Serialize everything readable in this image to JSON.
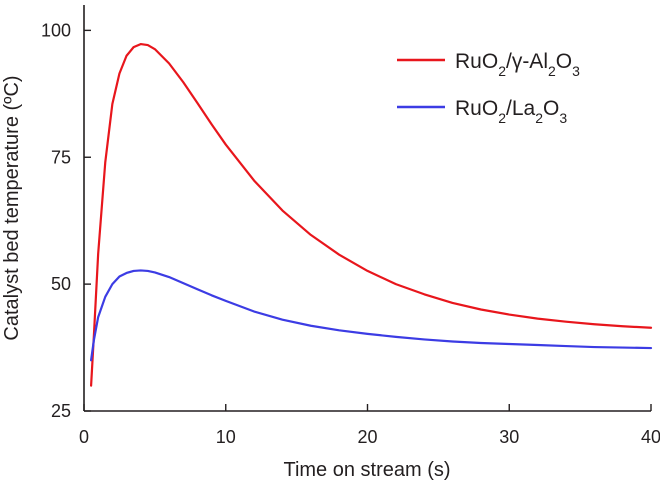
{
  "chart_data": {
    "type": "line",
    "xlabel": "Time on stream (s)",
    "ylabel": "Catalyst bed temperature (ºC)",
    "xlim": [
      0,
      40
    ],
    "ylim": [
      25,
      105
    ],
    "x_ticks": [
      0,
      10,
      20,
      30,
      40
    ],
    "y_ticks": [
      25,
      50,
      75,
      100
    ],
    "grid": false,
    "legend_position": "top-right",
    "series": [
      {
        "name": "RuO2/γ-Al2O3",
        "legend_parts": [
          {
            "text": "RuO"
          },
          {
            "text": "2",
            "sub": true
          },
          {
            "text": "/γ-Al"
          },
          {
            "text": "2",
            "sub": true
          },
          {
            "text": "O"
          },
          {
            "text": "3",
            "sub": true
          }
        ],
        "color": "#e8161c",
        "x": [
          0.5,
          0.7,
          1.0,
          1.5,
          2.0,
          2.5,
          3.0,
          3.5,
          4.0,
          4.5,
          5.0,
          6.0,
          7.0,
          8.0,
          9.0,
          10.0,
          12.0,
          14.0,
          16.0,
          18.0,
          20.0,
          22.0,
          24.0,
          26.0,
          28.0,
          30.0,
          32.0,
          34.0,
          36.0,
          38.0,
          40.0
        ],
        "y": [
          30.0,
          40.0,
          56.0,
          74.0,
          85.5,
          91.5,
          95.0,
          96.7,
          97.3,
          97.1,
          96.3,
          93.5,
          89.8,
          85.7,
          81.5,
          77.5,
          70.4,
          64.5,
          59.7,
          55.8,
          52.6,
          50.0,
          48.0,
          46.3,
          45.0,
          44.0,
          43.2,
          42.6,
          42.1,
          41.7,
          41.4
        ]
      },
      {
        "name": "RuO2/La2O3",
        "legend_parts": [
          {
            "text": "RuO"
          },
          {
            "text": "2",
            "sub": true
          },
          {
            "text": "/La"
          },
          {
            "text": "2",
            "sub": true
          },
          {
            "text": "O"
          },
          {
            "text": "3",
            "sub": true
          }
        ],
        "color": "#3c3ce4",
        "x": [
          0.5,
          0.7,
          1.0,
          1.5,
          2.0,
          2.5,
          3.0,
          3.5,
          4.0,
          4.5,
          5.0,
          6.0,
          7.0,
          8.0,
          9.0,
          10.0,
          12.0,
          14.0,
          16.0,
          18.0,
          20.0,
          22.0,
          24.0,
          26.0,
          28.0,
          30.0,
          32.0,
          34.0,
          36.0,
          38.0,
          40.0
        ],
        "y": [
          35.0,
          39.0,
          43.5,
          47.5,
          50.0,
          51.5,
          52.2,
          52.6,
          52.7,
          52.6,
          52.3,
          51.4,
          50.2,
          49.0,
          47.8,
          46.7,
          44.6,
          43.0,
          41.8,
          40.9,
          40.2,
          39.6,
          39.1,
          38.7,
          38.4,
          38.2,
          38.0,
          37.8,
          37.6,
          37.5,
          37.4
        ]
      }
    ]
  }
}
